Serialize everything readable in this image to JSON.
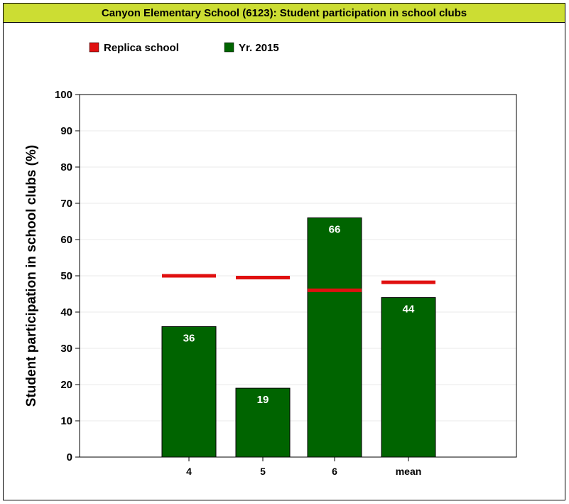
{
  "colors": {
    "title_bar_bg": "#ccdd33",
    "bar_fill": "#006400",
    "replica_line": "#e01010",
    "grid": "#e8e8e8"
  },
  "chart_data": {
    "type": "bar",
    "title": "Canyon Elementary School (6123): Student participation in school clubs",
    "ylabel": "Student participation in school clubs (%)",
    "xlabel": "",
    "ylim": [
      0,
      100
    ],
    "yticks": [
      0,
      10,
      20,
      30,
      40,
      50,
      60,
      70,
      80,
      90,
      100
    ],
    "categories": [
      "4",
      "5",
      "6",
      "mean"
    ],
    "series": [
      {
        "name": "Yr. 2015",
        "kind": "bar",
        "values": [
          36,
          19,
          66,
          44
        ],
        "labels": [
          "36",
          "19",
          "66",
          "44"
        ]
      },
      {
        "name": "Replica school",
        "kind": "marker-line",
        "values": [
          50,
          49.5,
          46,
          48.2
        ]
      }
    ],
    "legend": {
      "position": "top-left"
    },
    "grid": true
  }
}
